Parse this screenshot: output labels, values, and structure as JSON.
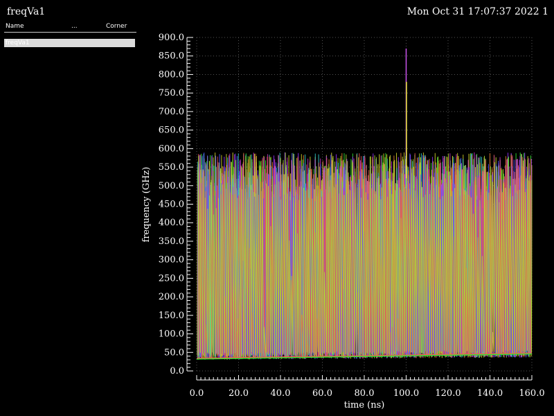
{
  "window": {
    "title": "freqVa1",
    "datetime": "Mon Oct 31 17:07:37 2022  1"
  },
  "legend": {
    "columns": {
      "name": "Name",
      "dots": "...",
      "corner": "Corner"
    },
    "items": [
      {
        "label": "freqVa1"
      }
    ]
  },
  "chart_data": {
    "type": "line",
    "title": "",
    "xlabel": "time (ns)",
    "ylabel": "frequency (GHz)",
    "xlim": [
      0,
      160
    ],
    "ylim": [
      0,
      900
    ],
    "x_ticks": [
      "0.0",
      "20.0",
      "40.0",
      "60.0",
      "80.0",
      "100.0",
      "120.0",
      "140.0",
      "160.0"
    ],
    "y_ticks": [
      "0.0",
      "50.0",
      "100.0",
      "150.0",
      "200.0",
      "250.0",
      "300.0",
      "350.0",
      "400.0",
      "450.0",
      "500.0",
      "550.0",
      "600.0",
      "650.0",
      "700.0",
      "750.0",
      "800.0",
      "850.0",
      "900.0"
    ],
    "grid": true,
    "series_colors": [
      "#e6e633",
      "#d4d42a",
      "#33e633",
      "#33cccc",
      "#9933ff",
      "#cc33cc",
      "#e68033",
      "#5555ff",
      "#e65555",
      "#aadd33"
    ],
    "baseline_range": [
      30,
      50
    ],
    "peak_range": [
      520,
      590
    ],
    "spike": {
      "x": 100,
      "y": 870,
      "color": "#cc55ee",
      "secondary_y": 780,
      "secondary_color": "#e6e633"
    },
    "trend_lines": [
      {
        "color": "#ff5555",
        "values": [
          [
            0,
            34
          ],
          [
            160,
            48
          ]
        ]
      },
      {
        "color": "#33dd33",
        "values": [
          [
            0,
            32
          ],
          [
            160,
            46
          ]
        ]
      }
    ]
  }
}
